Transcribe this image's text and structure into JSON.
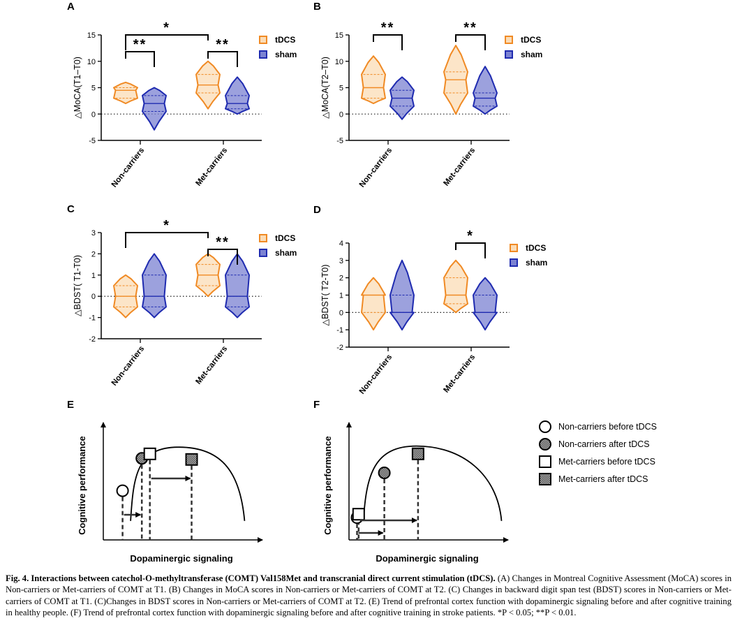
{
  "colors": {
    "tdcs_stroke": "#f08a24",
    "tdcs_fill": "#fbdcb6",
    "sham_stroke": "#1f2bb0",
    "sham_fill": "#7b82d2",
    "line": "#000000"
  },
  "chart_data": [
    {
      "panel": "A",
      "type": "violin",
      "ylabel": "△MoCA(T1–T0)",
      "ylim": [
        -5,
        15
      ],
      "yticks": [
        "15",
        "10",
        "5",
        "0",
        "-5"
      ],
      "categories": [
        "Non-carriers",
        "Met-carriers"
      ],
      "legend": [
        "tDCS",
        "sham"
      ],
      "series": [
        {
          "name": "tDCS",
          "groups": [
            {
              "min": 2,
              "max": 6,
              "median": 4.5,
              "q1": 3,
              "q3": 5
            },
            {
              "min": 1,
              "max": 10,
              "median": 5.5,
              "q1": 4,
              "q3": 7.5
            }
          ]
        },
        {
          "name": "sham",
          "groups": [
            {
              "min": -3,
              "max": 5,
              "median": 2,
              "q1": 0.5,
              "q3": 3.5
            },
            {
              "min": 0,
              "max": 7,
              "median": 2,
              "q1": 1,
              "q3": 3.5
            }
          ]
        }
      ],
      "annotations": [
        {
          "label": "*",
          "from": "Non-carriers tDCS",
          "to": "Met-carriers tDCS"
        },
        {
          "label": "**",
          "from": "Non-carriers tDCS",
          "to": "Non-carriers sham"
        },
        {
          "label": "**",
          "from": "Met-carriers tDCS",
          "to": "Met-carriers sham"
        }
      ]
    },
    {
      "panel": "B",
      "type": "violin",
      "ylabel": "△MoCA(T2–T0)",
      "ylim": [
        -5,
        15
      ],
      "yticks": [
        "15",
        "10",
        "5",
        "0",
        "-5"
      ],
      "categories": [
        "Non-carriers",
        "Met-carriers"
      ],
      "legend": [
        "tDCS",
        "sham"
      ],
      "series": [
        {
          "name": "tDCS",
          "groups": [
            {
              "min": 2,
              "max": 11,
              "median": 5,
              "q1": 3,
              "q3": 7.5
            },
            {
              "min": 0,
              "max": 13,
              "median": 6.5,
              "q1": 4,
              "q3": 8
            }
          ]
        },
        {
          "name": "sham",
          "groups": [
            {
              "min": -1,
              "max": 7,
              "median": 3,
              "q1": 1.5,
              "q3": 4.5
            },
            {
              "min": 0,
              "max": 9,
              "median": 3,
              "q1": 1.5,
              "q3": 4
            }
          ]
        }
      ],
      "annotations": [
        {
          "label": "**",
          "from": "Non-carriers tDCS",
          "to": "Non-carriers sham"
        },
        {
          "label": "**",
          "from": "Met-carriers tDCS",
          "to": "Met-carriers sham"
        }
      ]
    },
    {
      "panel": "C",
      "type": "violin",
      "ylabel": "△BDST( T1-T0)",
      "ylim": [
        -2,
        3
      ],
      "yticks": [
        "3",
        "2",
        "1",
        "0",
        "-1",
        "-2"
      ],
      "categories": [
        "Non-carriers",
        "Met-carriers"
      ],
      "legend": [
        "tDCS",
        "sham"
      ],
      "series": [
        {
          "name": "tDCS",
          "groups": [
            {
              "min": -1,
              "max": 1,
              "median": 0,
              "q1": -0.5,
              "q3": 0.5
            },
            {
              "min": 0,
              "max": 2,
              "median": 1,
              "q1": 0.5,
              "q3": 1.5
            }
          ]
        },
        {
          "name": "sham",
          "groups": [
            {
              "min": -1,
              "max": 2,
              "median": 0,
              "q1": -0.5,
              "q3": 1
            },
            {
              "min": -1,
              "max": 2,
              "median": 0,
              "q1": -0.5,
              "q3": 1
            }
          ]
        }
      ],
      "annotations": [
        {
          "label": "*",
          "from": "Non-carriers tDCS",
          "to": "Met-carriers tDCS"
        },
        {
          "label": "**",
          "from": "Met-carriers tDCS",
          "to": "Met-carriers sham"
        }
      ]
    },
    {
      "panel": "D",
      "type": "violin",
      "ylabel": "△BDST( T2-T0)",
      "ylim": [
        -2,
        4
      ],
      "yticks": [
        "4",
        "3",
        "2",
        "1",
        "0",
        "-1",
        "-2"
      ],
      "categories": [
        "Non-carriers",
        "Met-carriers"
      ],
      "legend": [
        "tDCS",
        "sham"
      ],
      "series": [
        {
          "name": "tDCS",
          "groups": [
            {
              "min": -1,
              "max": 2,
              "median": 1,
              "q1": 0,
              "q3": 1
            },
            {
              "min": 0,
              "max": 3,
              "median": 1,
              "q1": 0.5,
              "q3": 2
            }
          ]
        },
        {
          "name": "sham",
          "groups": [
            {
              "min": -1,
              "max": 3,
              "median": 0,
              "q1": 0,
              "q3": 1
            },
            {
              "min": -1,
              "max": 2,
              "median": 0,
              "q1": 0,
              "q3": 1
            }
          ]
        }
      ],
      "annotations": [
        {
          "label": "*",
          "from": "Met-carriers tDCS",
          "to": "Met-carriers sham"
        }
      ]
    },
    {
      "panel": "E",
      "type": "schematic",
      "xlabel": "Dopaminergic signaling",
      "ylabel": "Cognitive performance",
      "points": [
        {
          "group": "Non-carriers before tDCS",
          "x": 0.12,
          "y": 0.44
        },
        {
          "group": "Non-carriers after tDCS",
          "x": 0.24,
          "y": 0.73
        },
        {
          "group": "Met-carriers before tDCS",
          "x": 0.29,
          "y": 0.77
        },
        {
          "group": "Met-carriers after tDCS",
          "x": 0.55,
          "y": 0.72
        }
      ]
    },
    {
      "panel": "F",
      "type": "schematic",
      "xlabel": "Dopaminergic signaling",
      "ylabel": "Cognitive performance",
      "points": [
        {
          "group": "Non-carriers before tDCS",
          "x": 0.05,
          "y": 0.2
        },
        {
          "group": "Met-carriers before tDCS",
          "x": 0.06,
          "y": 0.23
        },
        {
          "group": "Non-carriers after tDCS",
          "x": 0.22,
          "y": 0.6
        },
        {
          "group": "Met-carriers after tDCS",
          "x": 0.43,
          "y": 0.77
        }
      ]
    }
  ],
  "schematic_legend": [
    {
      "label": "Non-carriers before tDCS",
      "marker": "open-circle"
    },
    {
      "label": "Non-carriers after tDCS",
      "marker": "hatched-circle"
    },
    {
      "label": "Met-carriers before tDCS",
      "marker": "open-square"
    },
    {
      "label": "Met-carriers after tDCS",
      "marker": "hatched-square"
    }
  ],
  "caption": {
    "title": "Fig. 4. Interactions between catechol-O-methyltransferase (COMT) Val158Met and transcranial direct current stimulation (tDCS).",
    "body": " (A) Changes in Montreal Cognitive Assessment (MoCA) scores in Non-carriers or Met-carriers of COMT at T1. (B) Changes in MoCA scores in Non-carriers or Met-carriers of COMT at T2. (C) Changes in backward digit span test (BDST) scores in Non-carriers or Met-carriers of COMT at T1. (C)Changes in BDST scores in Non-carriers or Met-carriers of COMT at T2. (E) Trend of prefrontal cortex function with dopaminergic signaling before and after cognitive training in healthy people. (F) Trend of prefrontal cortex function with dopaminergic signaling before and after cognitive training in stroke patients. *P < 0.05; **P < 0.01."
  }
}
